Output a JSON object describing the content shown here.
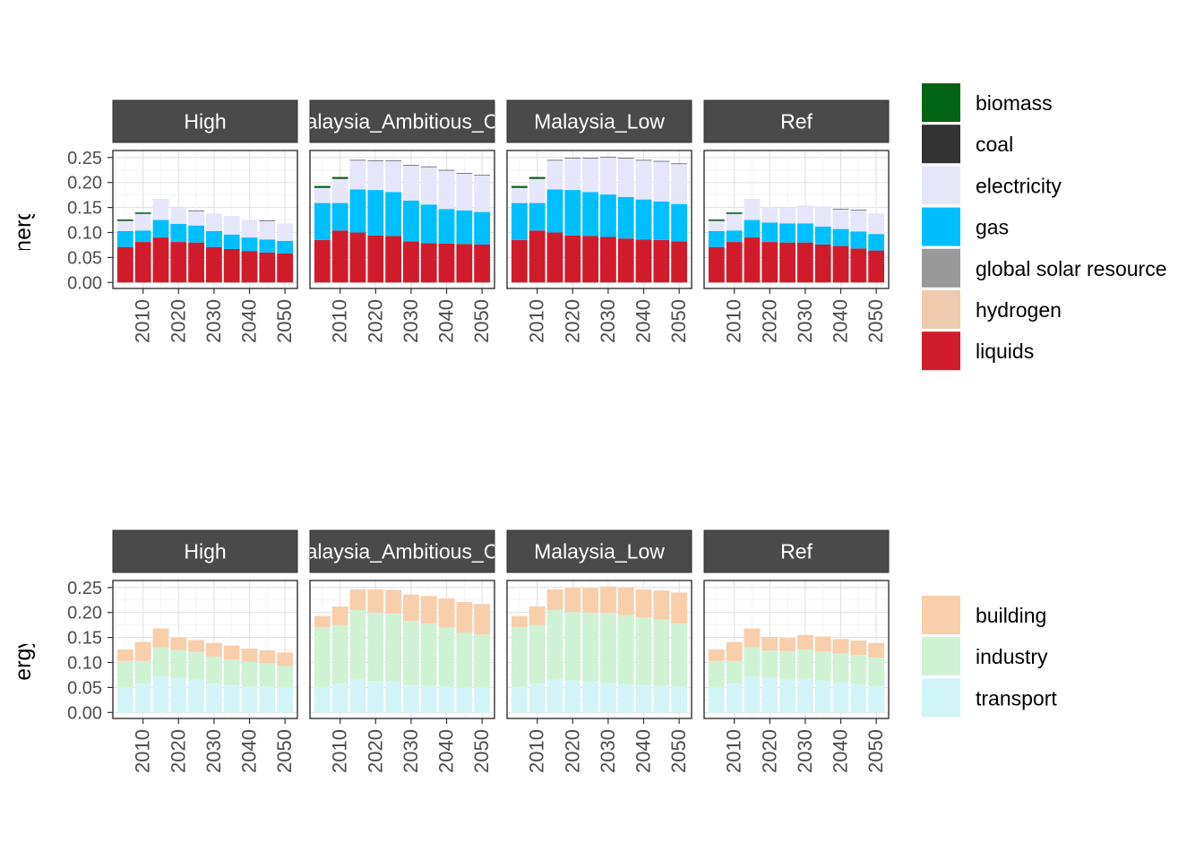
{
  "chart_data": [
    {
      "type": "bar",
      "stacked": true,
      "ylabel": "Final Energy by Fuel",
      "ylim": [
        0,
        0.26
      ],
      "yticks": [
        "0.00",
        "0.05",
        "0.10",
        "0.15",
        "0.20",
        "0.25"
      ],
      "x": [
        2005,
        2010,
        2015,
        2020,
        2025,
        2030,
        2035,
        2040,
        2045,
        2050
      ],
      "xticks": [
        "2010",
        "2020",
        "2030",
        "2040",
        "2050"
      ],
      "series_order": [
        "liquids",
        "gas",
        "electricity",
        "hydrogen",
        "global solar resource",
        "coal",
        "biomass"
      ],
      "panels": [
        {
          "title": "High",
          "values": {
            "liquids": [
              0.071,
              0.081,
              0.09,
              0.081,
              0.08,
              0.071,
              0.067,
              0.063,
              0.06,
              0.058
            ],
            "gas": [
              0.032,
              0.023,
              0.035,
              0.036,
              0.034,
              0.032,
              0.029,
              0.027,
              0.026,
              0.025
            ],
            "electricity": [
              0.02,
              0.033,
              0.042,
              0.032,
              0.029,
              0.035,
              0.037,
              0.035,
              0.037,
              0.035
            ],
            "hydrogen": [
              0,
              0,
              0,
              0,
              0,
              0,
              0,
              0,
              0,
              0
            ],
            "global solar resource": [
              0,
              0,
              0,
              0,
              0,
              0,
              0,
              0,
              0,
              0
            ],
            "coal": [
              0.001,
              0.001,
              0,
              0,
              0.001,
              0,
              0,
              0,
              0.001,
              0
            ],
            "biomass": [
              0.002,
              0.002,
              0,
              0,
              0,
              0,
              0,
              0,
              0,
              0
            ]
          }
        },
        {
          "title": "Malaysia_Ambitious_Cut",
          "values": {
            "liquids": [
              0.085,
              0.104,
              0.1,
              0.094,
              0.093,
              0.082,
              0.079,
              0.078,
              0.077,
              0.076
            ],
            "gas": [
              0.074,
              0.055,
              0.086,
              0.091,
              0.088,
              0.082,
              0.077,
              0.069,
              0.067,
              0.065
            ],
            "electricity": [
              0.03,
              0.048,
              0.058,
              0.058,
              0.062,
              0.07,
              0.075,
              0.077,
              0.074,
              0.073
            ],
            "hydrogen": [
              0,
              0,
              0,
              0,
              0,
              0,
              0,
              0,
              0,
              0
            ],
            "global solar resource": [
              0,
              0,
              0,
              0,
              0,
              0,
              0,
              0,
              0,
              0
            ],
            "coal": [
              0.001,
              0.001,
              0.001,
              0.001,
              0.001,
              0.001,
              0.001,
              0.001,
              0.001,
              0.001
            ],
            "biomass": [
              0.003,
              0.003,
              0,
              0,
              0,
              0,
              0,
              0,
              0,
              0
            ]
          }
        },
        {
          "title": "Malaysia_Low",
          "values": {
            "liquids": [
              0.085,
              0.104,
              0.1,
              0.094,
              0.093,
              0.091,
              0.088,
              0.086,
              0.085,
              0.082
            ],
            "gas": [
              0.074,
              0.055,
              0.086,
              0.091,
              0.088,
              0.085,
              0.083,
              0.08,
              0.077,
              0.075
            ],
            "electricity": [
              0.03,
              0.048,
              0.058,
              0.063,
              0.067,
              0.074,
              0.077,
              0.078,
              0.08,
              0.08
            ],
            "hydrogen": [
              0,
              0,
              0,
              0,
              0,
              0,
              0,
              0,
              0,
              0
            ],
            "global solar resource": [
              0,
              0,
              0,
              0,
              0,
              0,
              0,
              0,
              0,
              0
            ],
            "coal": [
              0.001,
              0.001,
              0.001,
              0.001,
              0.001,
              0.001,
              0.001,
              0.001,
              0.001,
              0.001
            ],
            "biomass": [
              0.003,
              0.003,
              0,
              0,
              0,
              0,
              0,
              0,
              0,
              0
            ]
          }
        },
        {
          "title": "Ref",
          "values": {
            "liquids": [
              0.071,
              0.081,
              0.09,
              0.081,
              0.08,
              0.08,
              0.076,
              0.073,
              0.068,
              0.064
            ],
            "gas": [
              0.032,
              0.023,
              0.035,
              0.039,
              0.038,
              0.038,
              0.036,
              0.034,
              0.034,
              0.033
            ],
            "electricity": [
              0.02,
              0.033,
              0.042,
              0.029,
              0.031,
              0.036,
              0.04,
              0.039,
              0.042,
              0.041
            ],
            "hydrogen": [
              0,
              0,
              0,
              0,
              0,
              0,
              0,
              0,
              0,
              0
            ],
            "global solar resource": [
              0,
              0,
              0,
              0,
              0,
              0,
              0,
              0,
              0,
              0
            ],
            "coal": [
              0.001,
              0.001,
              0,
              0,
              0,
              0,
              0,
              0.001,
              0.001,
              0
            ],
            "biomass": [
              0.002,
              0.002,
              0,
              0,
              0,
              0,
              0,
              0,
              0,
              0
            ]
          }
        }
      ],
      "legend": [
        {
          "name": "biomass",
          "color": "#006414"
        },
        {
          "name": "coal",
          "color": "#333333"
        },
        {
          "name": "electricity",
          "color": "#e6e6fa"
        },
        {
          "name": "gas",
          "color": "#00bfff"
        },
        {
          "name": "global solar resource",
          "color": "#999999"
        },
        {
          "name": "hydrogen",
          "color": "#eecaae"
        },
        {
          "name": "liquids",
          "color": "#d01c2a"
        }
      ]
    },
    {
      "type": "bar",
      "stacked": true,
      "ylabel": "Final Energy by Sector",
      "ylim": [
        0,
        0.26
      ],
      "yticks": [
        "0.00",
        "0.05",
        "0.10",
        "0.15",
        "0.20",
        "0.25"
      ],
      "x": [
        2005,
        2010,
        2015,
        2020,
        2025,
        2030,
        2035,
        2040,
        2045,
        2050
      ],
      "xticks": [
        "2010",
        "2020",
        "2030",
        "2040",
        "2050"
      ],
      "series_order": [
        "transport",
        "industry",
        "building"
      ],
      "panels": [
        {
          "title": "High",
          "values": {
            "transport": [
              0.051,
              0.058,
              0.072,
              0.069,
              0.066,
              0.058,
              0.055,
              0.052,
              0.052,
              0.051
            ],
            "industry": [
              0.052,
              0.045,
              0.058,
              0.056,
              0.055,
              0.054,
              0.051,
              0.049,
              0.046,
              0.042
            ],
            "building": [
              0.023,
              0.038,
              0.038,
              0.025,
              0.024,
              0.027,
              0.028,
              0.027,
              0.026,
              0.027
            ]
          }
        },
        {
          "title": "Malaysia_Ambitious_Cut",
          "values": {
            "transport": [
              0.051,
              0.058,
              0.067,
              0.063,
              0.062,
              0.055,
              0.053,
              0.052,
              0.05,
              0.051
            ],
            "industry": [
              0.12,
              0.117,
              0.138,
              0.137,
              0.136,
              0.128,
              0.125,
              0.118,
              0.11,
              0.105
            ],
            "building": [
              0.022,
              0.037,
              0.041,
              0.046,
              0.047,
              0.053,
              0.055,
              0.058,
              0.061,
              0.061
            ]
          }
        },
        {
          "title": "Malaysia_Low",
          "values": {
            "transport": [
              0.051,
              0.058,
              0.067,
              0.064,
              0.062,
              0.059,
              0.057,
              0.055,
              0.053,
              0.052
            ],
            "industry": [
              0.12,
              0.117,
              0.138,
              0.137,
              0.138,
              0.14,
              0.138,
              0.135,
              0.133,
              0.126
            ],
            "building": [
              0.022,
              0.037,
              0.041,
              0.048,
              0.049,
              0.053,
              0.055,
              0.056,
              0.058,
              0.062
            ]
          }
        },
        {
          "title": "Ref",
          "values": {
            "transport": [
              0.051,
              0.058,
              0.072,
              0.069,
              0.067,
              0.068,
              0.064,
              0.06,
              0.057,
              0.053
            ],
            "industry": [
              0.052,
              0.045,
              0.058,
              0.055,
              0.056,
              0.058,
              0.058,
              0.058,
              0.058,
              0.057
            ],
            "building": [
              0.023,
              0.038,
              0.038,
              0.027,
              0.026,
              0.029,
              0.03,
              0.029,
              0.029,
              0.029
            ]
          }
        }
      ],
      "legend": [
        {
          "name": "building",
          "color": "#f9ceaa"
        },
        {
          "name": "industry",
          "color": "#cff2d4"
        },
        {
          "name": "transport",
          "color": "#d1f5f7"
        }
      ]
    }
  ]
}
